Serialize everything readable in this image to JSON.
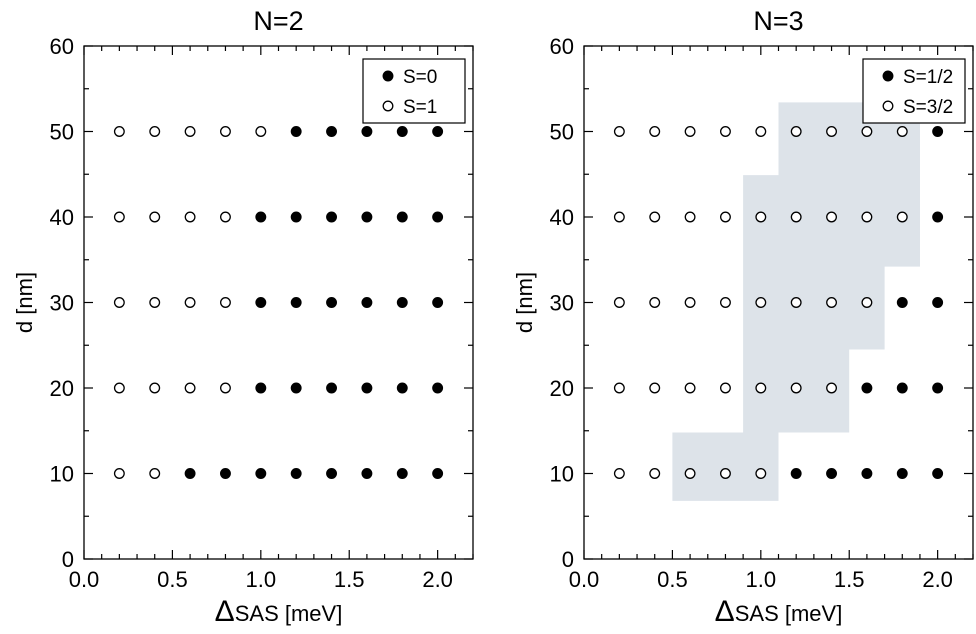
{
  "chart_data": [
    {
      "type": "scatter",
      "title": "N=2",
      "xlabel_symbol": "Δ",
      "xlabel_rest": "SAS [meV]",
      "ylabel": "d [nm]",
      "xlim": [
        0.0,
        2.2
      ],
      "ylim": [
        0,
        60
      ],
      "xticks": [
        0.0,
        0.5,
        1.0,
        1.5,
        2.0
      ],
      "xtick_labels": [
        "0.0",
        "0.5",
        "1.0",
        "1.5",
        "2.0"
      ],
      "yticks": [
        0,
        10,
        20,
        30,
        40,
        50,
        60
      ],
      "ytick_labels": [
        "0",
        "10",
        "20",
        "30",
        "40",
        "50",
        "60"
      ],
      "legend_position": "top-right",
      "series": [
        {
          "name": "S=0",
          "marker": "filled",
          "color": "#000000",
          "points": [
            [
              1.2,
              50
            ],
            [
              1.4,
              50
            ],
            [
              1.6,
              50
            ],
            [
              1.8,
              50
            ],
            [
              2.0,
              50
            ],
            [
              1.0,
              40
            ],
            [
              1.2,
              40
            ],
            [
              1.4,
              40
            ],
            [
              1.6,
              40
            ],
            [
              1.8,
              40
            ],
            [
              2.0,
              40
            ],
            [
              1.0,
              30
            ],
            [
              1.2,
              30
            ],
            [
              1.4,
              30
            ],
            [
              1.6,
              30
            ],
            [
              1.8,
              30
            ],
            [
              2.0,
              30
            ],
            [
              1.0,
              20
            ],
            [
              1.2,
              20
            ],
            [
              1.4,
              20
            ],
            [
              1.6,
              20
            ],
            [
              1.8,
              20
            ],
            [
              2.0,
              20
            ],
            [
              0.6,
              10
            ],
            [
              0.8,
              10
            ],
            [
              1.0,
              10
            ],
            [
              1.2,
              10
            ],
            [
              1.4,
              10
            ],
            [
              1.6,
              10
            ],
            [
              1.8,
              10
            ],
            [
              2.0,
              10
            ]
          ]
        },
        {
          "name": "S=1",
          "marker": "open",
          "color": "#000000",
          "points": [
            [
              0.2,
              50
            ],
            [
              0.4,
              50
            ],
            [
              0.6,
              50
            ],
            [
              0.8,
              50
            ],
            [
              1.0,
              50
            ],
            [
              0.2,
              40
            ],
            [
              0.4,
              40
            ],
            [
              0.6,
              40
            ],
            [
              0.8,
              40
            ],
            [
              0.2,
              30
            ],
            [
              0.4,
              30
            ],
            [
              0.6,
              30
            ],
            [
              0.8,
              30
            ],
            [
              0.2,
              20
            ],
            [
              0.4,
              20
            ],
            [
              0.6,
              20
            ],
            [
              0.8,
              20
            ],
            [
              0.2,
              10
            ],
            [
              0.4,
              10
            ]
          ]
        }
      ]
    },
    {
      "type": "scatter",
      "title": "N=3",
      "xlabel_symbol": "Δ",
      "xlabel_rest": "SAS [meV]",
      "ylabel": "d [nm]",
      "xlim": [
        0.0,
        2.2
      ],
      "ylim": [
        0,
        60
      ],
      "xticks": [
        0.0,
        0.5,
        1.0,
        1.5,
        2.0
      ],
      "xtick_labels": [
        "0.0",
        "0.5",
        "1.0",
        "1.5",
        "2.0"
      ],
      "yticks": [
        0,
        10,
        20,
        30,
        40,
        50,
        60
      ],
      "ytick_labels": [
        "0",
        "10",
        "20",
        "30",
        "40",
        "50",
        "60"
      ],
      "legend_position": "top-right",
      "shaded_region": {
        "color": "#dde3e9",
        "polygon": [
          [
            0.5,
            6.8
          ],
          [
            1.1,
            6.8
          ],
          [
            1.1,
            14.8
          ],
          [
            1.5,
            14.8
          ],
          [
            1.5,
            24.5
          ],
          [
            1.7,
            24.5
          ],
          [
            1.7,
            34.2
          ],
          [
            1.9,
            34.2
          ],
          [
            1.9,
            53.4
          ],
          [
            1.1,
            53.4
          ],
          [
            1.1,
            44.9
          ],
          [
            0.9,
            44.9
          ],
          [
            0.9,
            14.8
          ],
          [
            0.5,
            14.8
          ]
        ]
      },
      "series": [
        {
          "name": "S=1/2",
          "marker": "filled",
          "color": "#000000",
          "points": [
            [
              2.0,
              50
            ],
            [
              2.0,
              40
            ],
            [
              1.8,
              30
            ],
            [
              2.0,
              30
            ],
            [
              1.6,
              20
            ],
            [
              1.8,
              20
            ],
            [
              2.0,
              20
            ],
            [
              1.2,
              10
            ],
            [
              1.4,
              10
            ],
            [
              1.6,
              10
            ],
            [
              1.8,
              10
            ],
            [
              2.0,
              10
            ]
          ]
        },
        {
          "name": "S=3/2",
          "marker": "open",
          "color": "#000000",
          "points": [
            [
              0.2,
              50
            ],
            [
              0.4,
              50
            ],
            [
              0.6,
              50
            ],
            [
              0.8,
              50
            ],
            [
              1.0,
              50
            ],
            [
              1.2,
              50
            ],
            [
              1.4,
              50
            ],
            [
              1.6,
              50
            ],
            [
              1.8,
              50
            ],
            [
              0.2,
              40
            ],
            [
              0.4,
              40
            ],
            [
              0.6,
              40
            ],
            [
              0.8,
              40
            ],
            [
              1.0,
              40
            ],
            [
              1.2,
              40
            ],
            [
              1.4,
              40
            ],
            [
              1.6,
              40
            ],
            [
              1.8,
              40
            ],
            [
              0.2,
              30
            ],
            [
              0.4,
              30
            ],
            [
              0.6,
              30
            ],
            [
              0.8,
              30
            ],
            [
              1.0,
              30
            ],
            [
              1.2,
              30
            ],
            [
              1.4,
              30
            ],
            [
              1.6,
              30
            ],
            [
              0.2,
              20
            ],
            [
              0.4,
              20
            ],
            [
              0.6,
              20
            ],
            [
              0.8,
              20
            ],
            [
              1.0,
              20
            ],
            [
              1.2,
              20
            ],
            [
              1.4,
              20
            ],
            [
              0.2,
              10
            ],
            [
              0.4,
              10
            ],
            [
              0.6,
              10
            ],
            [
              0.8,
              10
            ],
            [
              1.0,
              10
            ]
          ]
        }
      ]
    }
  ]
}
